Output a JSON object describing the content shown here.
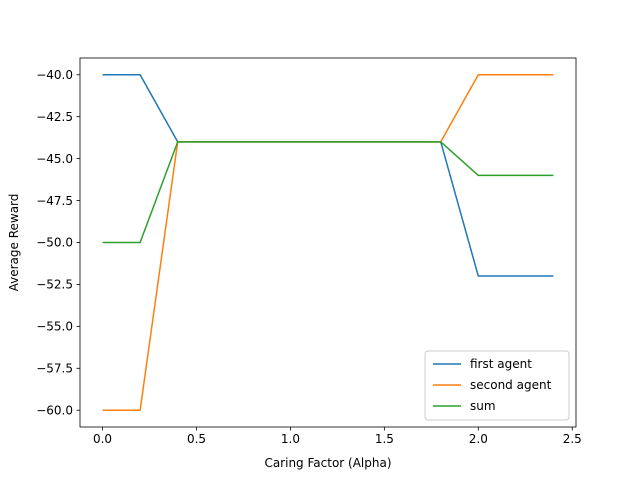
{
  "chart_data": {
    "type": "line",
    "title": "",
    "xlabel": "Caring Factor (Alpha)",
    "ylabel": "Average Reward",
    "xlim": [
      -0.12,
      2.52
    ],
    "ylim": [
      -61.0,
      -39.0
    ],
    "xticks": [
      0.0,
      0.5,
      1.0,
      1.5,
      2.0,
      2.5
    ],
    "xtick_labels": [
      "0.0",
      "0.5",
      "1.0",
      "1.5",
      "2.0",
      "2.5"
    ],
    "yticks": [
      -40.0,
      -42.5,
      -45.0,
      -47.5,
      -50.0,
      -52.5,
      -55.0,
      -57.5,
      -60.0
    ],
    "ytick_labels": [
      "−40.0",
      "−42.5",
      "−45.0",
      "−47.5",
      "−50.0",
      "−52.5",
      "−55.0",
      "−57.5",
      "−60.0"
    ],
    "x": [
      0.0,
      0.2,
      0.4,
      0.6,
      0.8,
      1.0,
      1.2,
      1.4,
      1.6,
      1.8,
      2.0,
      2.2,
      2.4
    ],
    "series": [
      {
        "name": "first agent",
        "color": "#1f77b4",
        "values": [
          -40,
          -40,
          -44,
          -44,
          -44,
          -44,
          -44,
          -44,
          -44,
          -44,
          -52,
          -52,
          -52
        ]
      },
      {
        "name": "second agent",
        "color": "#ff7f0e",
        "values": [
          -60,
          -60,
          -44,
          -44,
          -44,
          -44,
          -44,
          -44,
          -44,
          -44,
          -40,
          -40,
          -40
        ]
      },
      {
        "name": "sum",
        "color": "#2ca02c",
        "values": [
          -50,
          -50,
          -44,
          -44,
          -44,
          -44,
          -44,
          -44,
          -44,
          -44,
          -46,
          -46,
          -46
        ]
      }
    ],
    "grid": false,
    "legend": "lower right"
  }
}
